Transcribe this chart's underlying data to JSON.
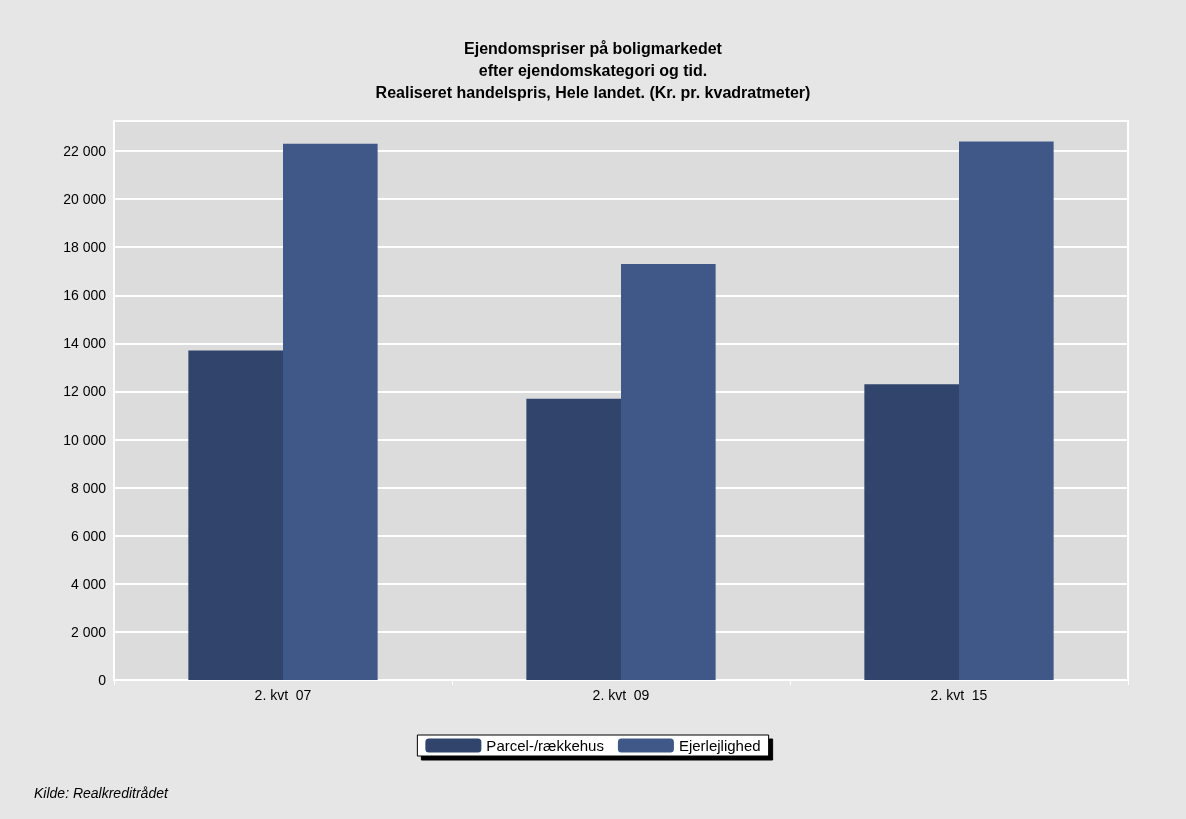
{
  "chart_data": {
    "type": "bar",
    "title": "Ejendomspriser på boligmarkedet\nefter ejendomskategori og tid.\nRealiseret handelspris, Hele landet. (Kr. pr. kvadratmeter)",
    "categories": [
      "2. kvt  07",
      "2. kvt  09",
      "2. kvt  15"
    ],
    "series": [
      {
        "name": "Parcel-/rækkehus",
        "color": "#31446b",
        "values": [
          13700,
          11700,
          12300
        ]
      },
      {
        "name": "Ejerlejlighed",
        "color": "#3f5887",
        "values": [
          22300,
          17300,
          22400
        ]
      }
    ],
    "ylim": [
      0,
      23250
    ],
    "yticks": [
      {
        "value": 0,
        "label": "0"
      },
      {
        "value": 2000,
        "label": "2 000"
      },
      {
        "value": 4000,
        "label": "4 000"
      },
      {
        "value": 6000,
        "label": "6 000"
      },
      {
        "value": 8000,
        "label": "8 000"
      },
      {
        "value": 10000,
        "label": "10 000"
      },
      {
        "value": 12000,
        "label": "12 000"
      },
      {
        "value": 14000,
        "label": "14 000"
      },
      {
        "value": 16000,
        "label": "16 000"
      },
      {
        "value": 18000,
        "label": "18 000"
      },
      {
        "value": 20000,
        "label": "20 000"
      },
      {
        "value": 22000,
        "label": "22 000"
      }
    ],
    "grid": "y",
    "legend": "bottom",
    "annotations": [
      "Kilde: Realkreditrådet"
    ]
  }
}
